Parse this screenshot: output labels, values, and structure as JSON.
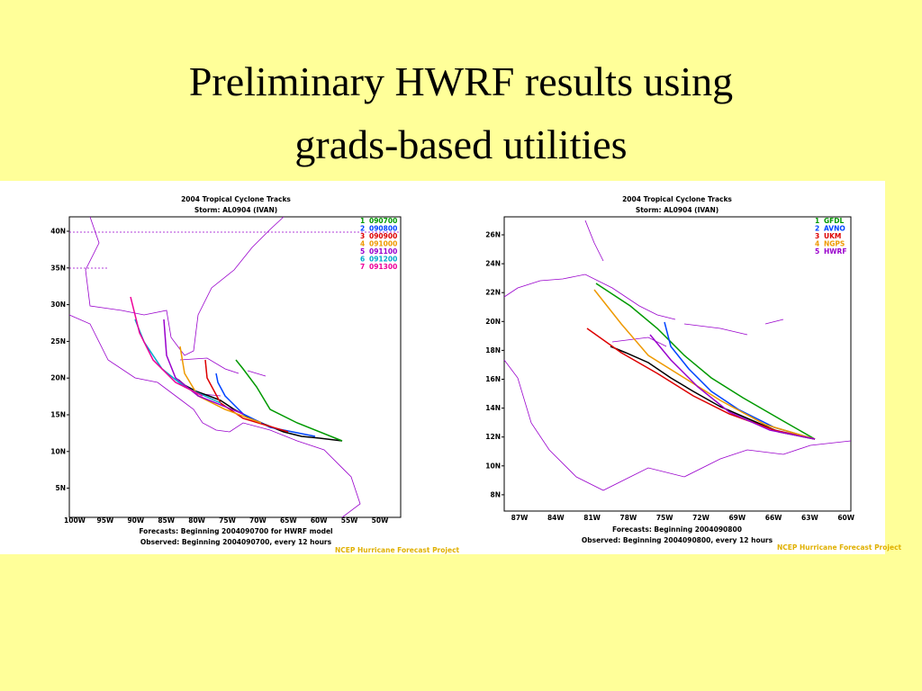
{
  "slide": {
    "title_lines": [
      "Preliminary HWRF results using",
      "grads-based utilities"
    ],
    "panels": [
      {
        "title": "2004 Tropical Cyclone Tracks",
        "storm": "Storm: AL0904 (IVAN)",
        "legend": [
          {
            "number": "1",
            "label": "090700",
            "color": "#009900"
          },
          {
            "number": "2",
            "label": "090800",
            "color": "#0044ff"
          },
          {
            "number": "3",
            "label": "090900",
            "color": "#dd0000"
          },
          {
            "number": "4",
            "label": "091000",
            "color": "#ee9900"
          },
          {
            "number": "5",
            "label": "091100",
            "color": "#9900cc"
          },
          {
            "number": "6",
            "label": "091200",
            "color": "#00aacc"
          },
          {
            "number": "7",
            "label": "091300",
            "color": "#ee0099"
          }
        ],
        "y_ticks": [
          "40N",
          "35N",
          "30N",
          "25N",
          "20N",
          "15N",
          "10N",
          "5N"
        ],
        "x_ticks": [
          "100W",
          "95W",
          "90W",
          "85W",
          "80W",
          "75W",
          "70W",
          "65W",
          "60W",
          "55W",
          "50W"
        ],
        "forecast_note": "Forecasts: Beginning 2004090700 for HWRF model",
        "observed_note": "Observed: Beginning 2004090700, every 12 hours",
        "credit": "NCEP Hurricane Forecast Project"
      },
      {
        "title": "2004 Tropical Cyclone Tracks",
        "storm": "Storm: AL0904 (IVAN)",
        "legend": [
          {
            "number": "1",
            "label": "GFDL",
            "color": "#009900"
          },
          {
            "number": "2",
            "label": "AVNO",
            "color": "#0044ff"
          },
          {
            "number": "3",
            "label": "UKM",
            "color": "#dd0000"
          },
          {
            "number": "4",
            "label": "NGPS",
            "color": "#ee9900"
          },
          {
            "number": "5",
            "label": "HWRF",
            "color": "#9900cc"
          }
        ],
        "y_ticks": [
          "26N",
          "24N",
          "22N",
          "20N",
          "18N",
          "16N",
          "14N",
          "12N",
          "10N",
          "8N"
        ],
        "x_ticks": [
          "87W",
          "84W",
          "81W",
          "78W",
          "75W",
          "72W",
          "69W",
          "66W",
          "63W",
          "60W"
        ],
        "forecast_note": "Forecasts: Beginning 2004090800",
        "observed_note": "Observed: Beginning 2004090800, every 12 hours",
        "credit": "NCEP Hurricane Forecast Project"
      }
    ]
  }
}
